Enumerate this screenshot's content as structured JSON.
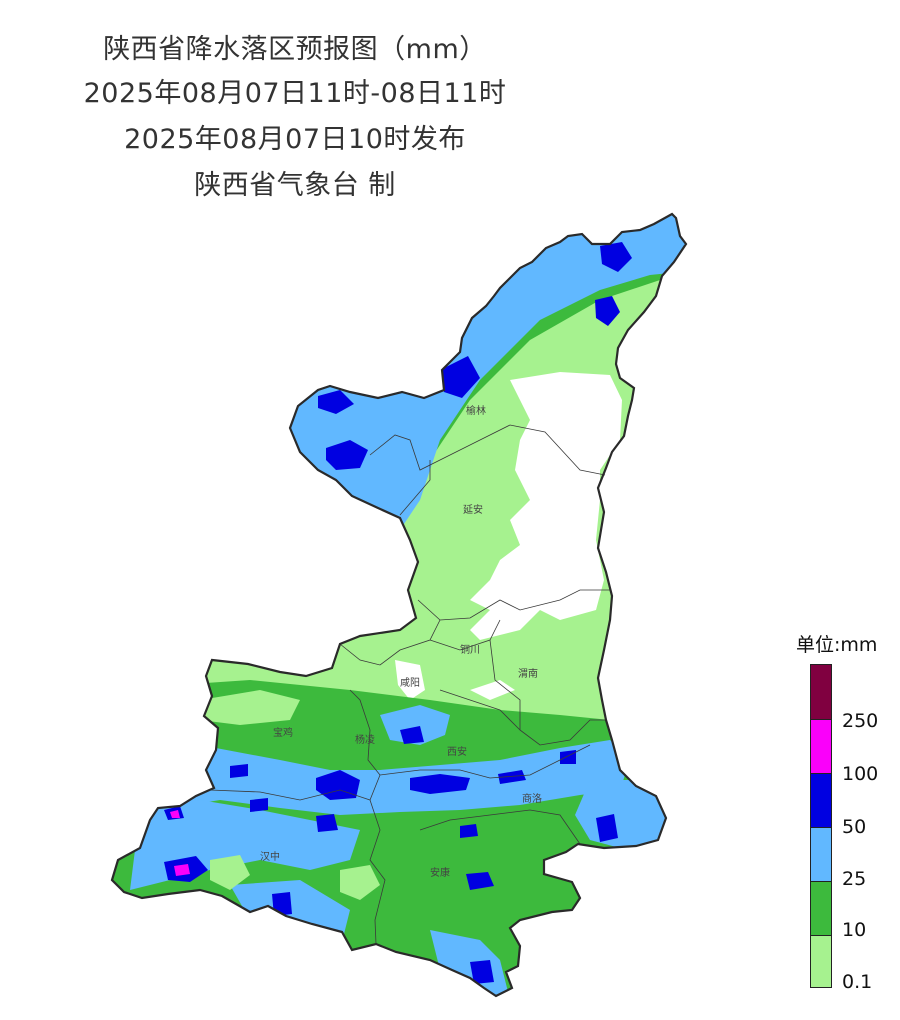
{
  "title": {
    "line1": "陕西省降水落区预报图（mm）",
    "line2": "2025年08月07日11时-08日11时",
    "line3": "2025年08月07日10时发布",
    "line4": "陕西省气象台 制"
  },
  "cities": [
    "榆林",
    "延安",
    "铜川",
    "咸阳",
    "渭南",
    "宝鸡",
    "杨凌",
    "西安",
    "商洛",
    "汉中",
    "安康"
  ],
  "legend": {
    "title": "单位:mm",
    "thresholds": [
      "0.1",
      "10",
      "25",
      "50",
      "100",
      "250"
    ],
    "colors": [
      "#a6f28f",
      "#3dba3d",
      "#61b8ff",
      "#0000e1",
      "#fa00fa",
      "#800040"
    ]
  }
}
